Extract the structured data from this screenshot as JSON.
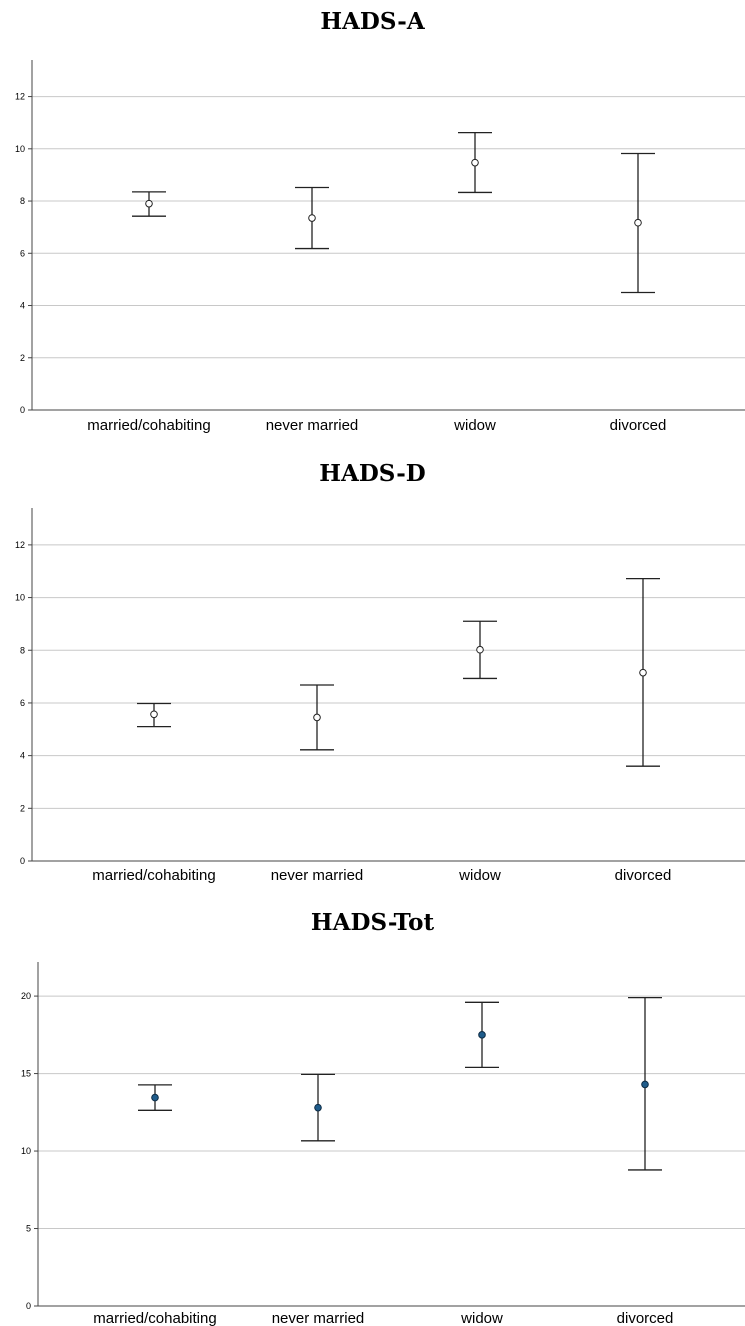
{
  "chart_data": [
    {
      "type": "errorbar",
      "title": "HADS-A",
      "categories": [
        "married/cohabiting",
        "never married",
        "widow",
        "divorced"
      ],
      "means": [
        7.9,
        7.35,
        9.47,
        7.17
      ],
      "lower": [
        7.42,
        6.18,
        8.33,
        4.5
      ],
      "upper": [
        8.35,
        8.52,
        10.62,
        9.82
      ],
      "yticks": [
        0,
        2,
        4,
        6,
        8,
        10,
        12
      ],
      "ylim": [
        0,
        13.4
      ],
      "grid": true,
      "marker": "open-circle"
    },
    {
      "type": "errorbar",
      "title": "HADS-D",
      "categories": [
        "married/cohabiting",
        "never married",
        "widow",
        "divorced"
      ],
      "means": [
        5.57,
        5.45,
        8.02,
        7.15
      ],
      "lower": [
        5.1,
        4.22,
        6.93,
        3.6
      ],
      "upper": [
        5.98,
        6.68,
        9.1,
        10.72
      ],
      "yticks": [
        0,
        2,
        4,
        6,
        8,
        10,
        12
      ],
      "ylim": [
        0,
        13.4
      ],
      "grid": true,
      "marker": "open-circle"
    },
    {
      "type": "errorbar",
      "title": "HADS-Tot",
      "categories": [
        "married/cohabiting",
        "never married",
        "widow",
        "divorced"
      ],
      "means": [
        13.45,
        12.8,
        17.5,
        14.3
      ],
      "lower": [
        12.63,
        10.66,
        15.4,
        8.78
      ],
      "upper": [
        14.27,
        14.95,
        19.6,
        19.9
      ],
      "yticks": [
        0,
        5,
        10,
        15,
        20
      ],
      "ylim": [
        0,
        22.2
      ],
      "grid": true,
      "marker": "filled-circle",
      "color": "#1f5c8b"
    }
  ]
}
